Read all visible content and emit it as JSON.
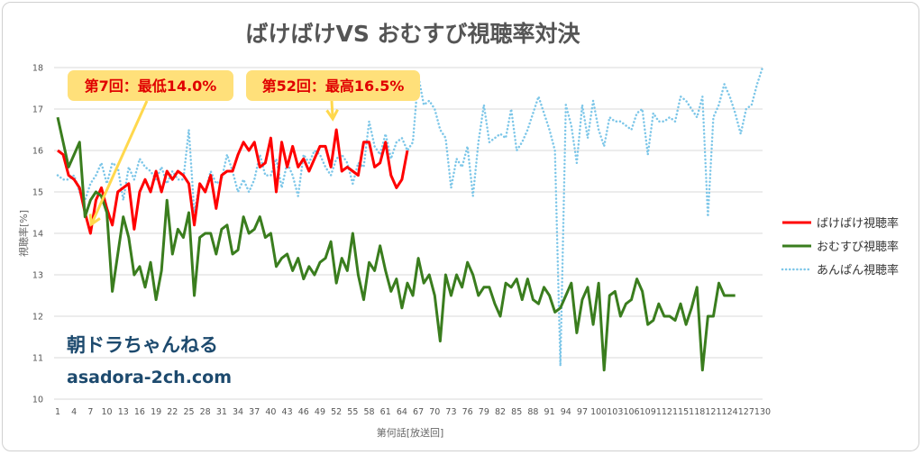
{
  "chart_data": {
    "type": "line",
    "title": "ばけばけVS おむすび視聴率対決",
    "xlabel": "第何話[放送回]",
    "ylabel": "視聴率[%]",
    "xlim": [
      1,
      130
    ],
    "ylim": [
      10,
      18
    ],
    "yticks": [
      10,
      11,
      12,
      13,
      14,
      15,
      16,
      17,
      18
    ],
    "xtick_step": 3,
    "grid": "horizontal",
    "legend_position": "right",
    "series": [
      {
        "name": "ばけばけ視聴率",
        "color": "#ff0000",
        "style": "solid",
        "values": [
          16.0,
          15.9,
          15.4,
          15.3,
          15.1,
          14.5,
          14.0,
          14.8,
          15.1,
          14.6,
          14.2,
          15.0,
          15.1,
          15.2,
          14.1,
          15.0,
          15.3,
          15.0,
          15.5,
          15.0,
          15.5,
          15.3,
          15.5,
          15.4,
          15.2,
          14.2,
          15.2,
          15.0,
          15.4,
          14.6,
          15.4,
          15.5,
          15.5,
          15.9,
          16.2,
          16.0,
          16.2,
          15.6,
          15.7,
          16.3,
          15.0,
          16.2,
          15.6,
          16.1,
          15.6,
          15.8,
          15.5,
          15.8,
          16.1,
          16.1,
          15.6,
          16.5,
          15.5,
          15.6,
          15.5,
          15.4,
          16.2,
          16.2,
          15.6,
          15.7,
          16.2,
          15.4,
          15.1,
          15.3,
          16.0
        ]
      },
      {
        "name": "おむすび視聴率",
        "color": "#3a7d1e",
        "style": "solid",
        "values": [
          16.8,
          16.2,
          15.6,
          15.9,
          16.2,
          14.4,
          14.8,
          15.0,
          14.9,
          14.5,
          12.6,
          13.5,
          14.4,
          13.9,
          13.0,
          13.2,
          12.7,
          13.3,
          12.4,
          13.1,
          14.8,
          13.5,
          14.1,
          13.9,
          14.5,
          12.5,
          13.9,
          14.0,
          14.0,
          13.5,
          14.1,
          14.2,
          13.5,
          13.6,
          14.4,
          14.0,
          14.1,
          14.4,
          13.9,
          14.0,
          13.2,
          13.4,
          13.5,
          13.1,
          13.4,
          12.9,
          13.2,
          13.0,
          13.3,
          13.4,
          13.8,
          12.8,
          13.4,
          13.1,
          14.0,
          13.0,
          12.4,
          13.3,
          13.1,
          13.7,
          13.1,
          12.6,
          12.9,
          12.2,
          12.8,
          12.5,
          13.4,
          12.8,
          13.0,
          12.5,
          11.4,
          13.0,
          12.5,
          13.0,
          12.7,
          13.3,
          13.0,
          12.5,
          12.7,
          12.7,
          12.3,
          12.0,
          12.8,
          12.7,
          12.9,
          12.4,
          12.9,
          12.4,
          12.3,
          12.7,
          12.5,
          12.1,
          12.2,
          12.5,
          12.8,
          11.6,
          12.4,
          12.7,
          11.8,
          12.8,
          10.7,
          12.5,
          12.6,
          12.0,
          12.3,
          12.4,
          12.9,
          12.6,
          11.8,
          11.9,
          12.3,
          12.0,
          12.0,
          11.9,
          12.3,
          11.8,
          12.2,
          12.7,
          10.7,
          12.0,
          12.0,
          12.8,
          12.5,
          12.5,
          12.5
        ]
      },
      {
        "name": "あんぱん視聴率",
        "color": "#7cc6e8",
        "style": "dotted",
        "values": [
          15.4,
          15.3,
          15.3,
          15.4,
          15.0,
          14.8,
          15.2,
          15.4,
          15.7,
          15.2,
          15.7,
          15.6,
          14.8,
          15.6,
          15.3,
          15.8,
          15.6,
          15.5,
          15.3,
          15.6,
          15.2,
          15.5,
          15.3,
          15.3,
          16.5,
          14.5,
          15.2,
          15.0,
          15.5,
          15.2,
          15.3,
          15.9,
          15.5,
          15.0,
          15.3,
          15.0,
          15.3,
          15.9,
          15.4,
          15.4,
          15.8,
          15.1,
          15.7,
          15.4,
          14.9,
          15.9,
          15.7,
          16.0,
          15.9,
          15.6,
          15.4,
          15.8,
          15.9,
          15.7,
          15.2,
          15.7,
          15.6,
          16.7,
          16.1,
          15.9,
          16.4,
          15.8,
          16.2,
          16.3,
          16.0,
          16.2,
          17.8,
          17.1,
          17.2,
          17.0,
          16.5,
          16.3,
          15.1,
          15.8,
          15.6,
          16.1,
          14.9,
          16.2,
          17.1,
          16.2,
          16.3,
          16.4,
          16.3,
          17.0,
          16.0,
          16.2,
          16.5,
          16.9,
          17.3,
          16.9,
          16.5,
          16.0,
          10.8,
          17.1,
          16.6,
          15.7,
          17.1,
          16.3,
          17.2,
          16.5,
          16.1,
          16.8,
          16.7,
          16.7,
          16.6,
          16.5,
          16.9,
          17.0,
          15.9,
          16.9,
          16.7,
          16.7,
          16.8,
          16.7,
          17.3,
          17.2,
          17.0,
          16.8,
          17.3,
          14.4,
          16.8,
          17.1,
          17.6,
          17.3,
          16.9,
          16.4,
          17.0,
          17.1,
          17.6,
          18.0
        ]
      }
    ],
    "annotations": [
      {
        "text": "第7回：最低14.0%",
        "x": 7,
        "y": 14.0
      },
      {
        "text": "第52回：最高16.5%",
        "x": 52,
        "y": 16.5
      }
    ]
  },
  "colors": {
    "annotation_fill": "#ffe07a",
    "annotation_arrow": "#ffd84d",
    "watermark": "#1d4a6e"
  },
  "watermark": {
    "name": "朝ドラちゃんねる",
    "url": "asadora-2ch.com"
  }
}
